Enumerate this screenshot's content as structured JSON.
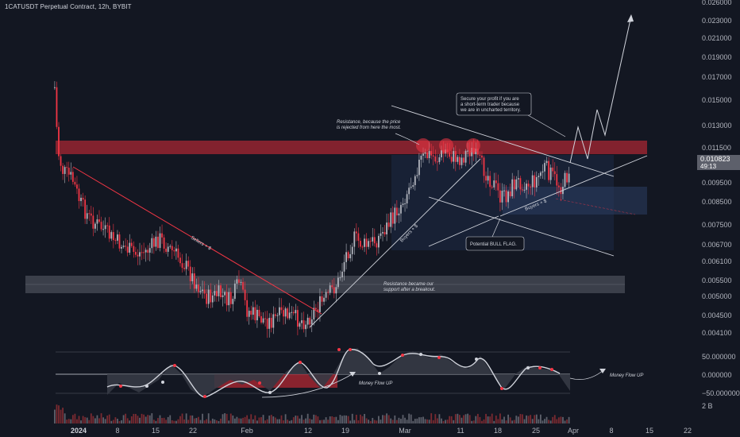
{
  "header": {
    "title": "1CATUSDT Perpetual Contract, 12h, BYBIT"
  },
  "chart_data": {
    "type": "candlestick",
    "symbol": "1CATUSDT",
    "timeframe": "12h",
    "exchange": "BYBIT",
    "price_axis": {
      "ticks": [
        "0.026000",
        "0.023000",
        "0.021000",
        "0.019000",
        "0.017000",
        "0.015000",
        "0.013000",
        "0.011500",
        "0.009500",
        "0.008500",
        "0.007500",
        "0.006700",
        "0.006100",
        "0.005500",
        "0.005000",
        "0.004500",
        "0.004100"
      ],
      "current_price": "0.010823",
      "countdown": "49:13",
      "scale": "log"
    },
    "time_axis": {
      "ticks": [
        "2024",
        "8",
        "15",
        "22",
        "Feb",
        "12",
        "19",
        "Mar",
        "11",
        "18",
        "25",
        "Apr",
        "8",
        "15",
        "22"
      ]
    },
    "oscillator": {
      "ticks": [
        "50.000000",
        "0.000000",
        "−50.000000"
      ],
      "annotations": [
        "Money Flow UP",
        "Money Flow UP"
      ]
    },
    "volume": {
      "label": "2 B"
    },
    "annotations": {
      "resistance": [
        "Resistance, because the price",
        "is rejected from here the most."
      ],
      "support": [
        "Resistance became our",
        "support after a breakout."
      ],
      "profit": [
        "Secure your profit if you are",
        "a short-term trader because",
        "we are in uncharted territory."
      ],
      "bull_flag": "Potential BULL FLAG.",
      "sellers": "Sellers + $",
      "buyers_1": "Buyers + $",
      "buyers_2": "Buyers + $"
    },
    "colors": {
      "background": "#131722",
      "bull": "#b2b5be",
      "bear": "#f23645",
      "resistance_zone": "#b22833",
      "support_zone": "#5d606b",
      "flag_box": "#2a3a5e"
    }
  }
}
